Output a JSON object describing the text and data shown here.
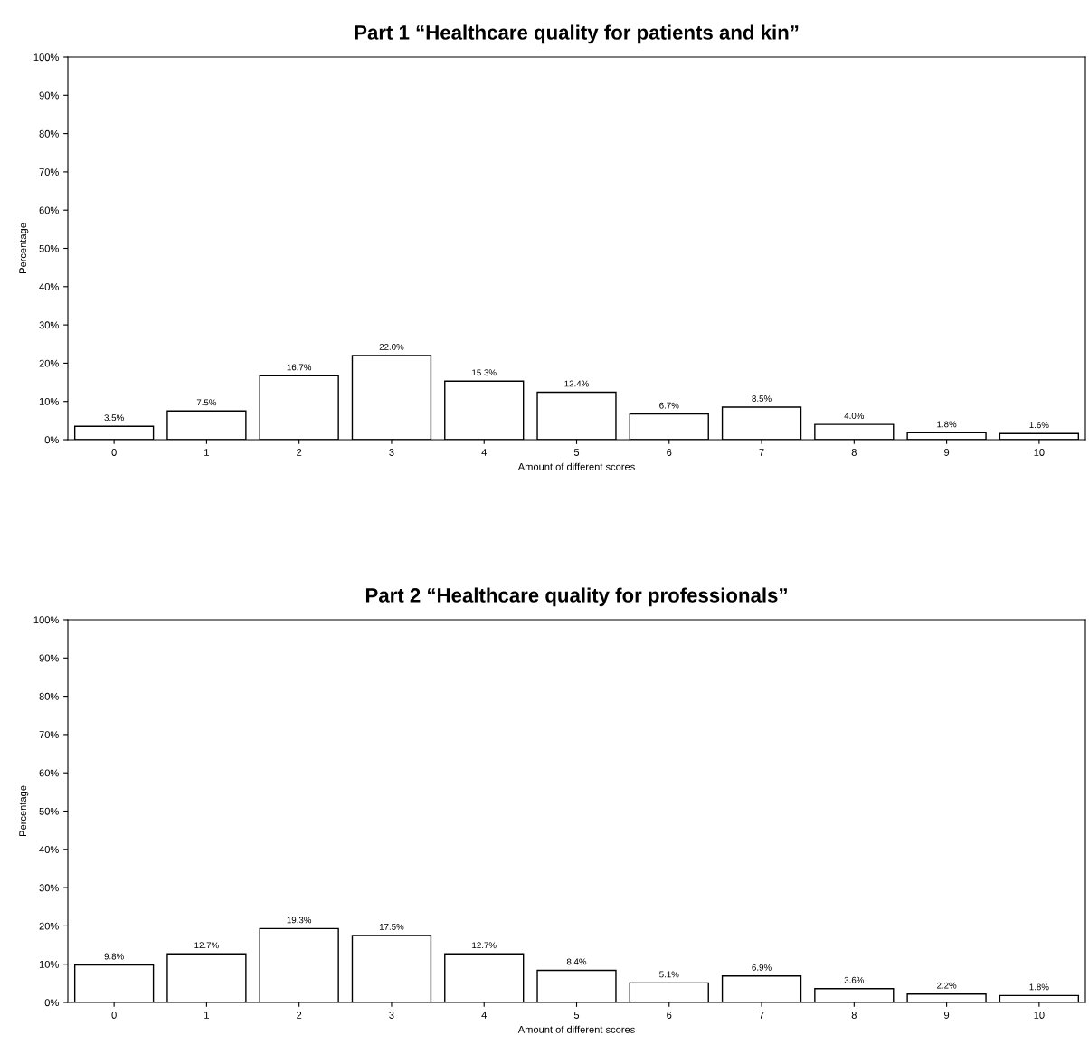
{
  "chart_data": [
    {
      "type": "bar",
      "title": "Part 1 “Healthcare quality for patients and kin”",
      "xlabel": "Amount of different scores",
      "ylabel": "Percentage",
      "categories": [
        "0",
        "1",
        "2",
        "3",
        "4",
        "5",
        "6",
        "7",
        "8",
        "9",
        "10"
      ],
      "values": [
        3.5,
        7.5,
        16.7,
        22.0,
        15.3,
        12.4,
        6.7,
        8.5,
        4.0,
        1.8,
        1.6
      ],
      "value_labels": [
        "3.5%",
        "7.5%",
        "16.7%",
        "22.0%",
        "15.3%",
        "12.4%",
        "6.7%",
        "8.5%",
        "4.0%",
        "1.8%",
        "1.6%"
      ],
      "color": "#ffffff",
      "ylim": [
        0,
        100
      ],
      "yticks": [
        {
          "value": 0,
          "label": "0%"
        },
        {
          "value": 10,
          "label": "10%"
        },
        {
          "value": 20,
          "label": "20%"
        },
        {
          "value": 30,
          "label": "30%"
        },
        {
          "value": 40,
          "label": "40%"
        },
        {
          "value": 50,
          "label": "50%"
        },
        {
          "value": 60,
          "label": "60%"
        },
        {
          "value": 70,
          "label": "70%"
        },
        {
          "value": 80,
          "label": "80%"
        },
        {
          "value": 90,
          "label": "90%"
        },
        {
          "value": 100,
          "label": "100%"
        }
      ],
      "grid": false,
      "legend": false
    },
    {
      "type": "bar",
      "title": "Part 2 “Healthcare quality for professionals”",
      "xlabel": "Amount of different scores",
      "ylabel": "Percentage",
      "categories": [
        "0",
        "1",
        "2",
        "3",
        "4",
        "5",
        "6",
        "7",
        "8",
        "9",
        "10"
      ],
      "values": [
        9.8,
        12.7,
        19.3,
        17.5,
        12.7,
        8.4,
        5.1,
        6.9,
        3.6,
        2.2,
        1.8
      ],
      "value_labels": [
        "9.8%",
        "12.7%",
        "19.3%",
        "17.5%",
        "12.7%",
        "8.4%",
        "5.1%",
        "6.9%",
        "3.6%",
        "2.2%",
        "1.8%"
      ],
      "color": "#ffffff",
      "ylim": [
        0,
        100
      ],
      "yticks": [
        {
          "value": 0,
          "label": "0%"
        },
        {
          "value": 10,
          "label": "10%"
        },
        {
          "value": 20,
          "label": "20%"
        },
        {
          "value": 30,
          "label": "30%"
        },
        {
          "value": 40,
          "label": "40%"
        },
        {
          "value": 50,
          "label": "50%"
        },
        {
          "value": 60,
          "label": "60%"
        },
        {
          "value": 70,
          "label": "70%"
        },
        {
          "value": 80,
          "label": "80%"
        },
        {
          "value": 90,
          "label": "90%"
        },
        {
          "value": 100,
          "label": "100%"
        }
      ],
      "grid": false,
      "legend": false
    }
  ]
}
